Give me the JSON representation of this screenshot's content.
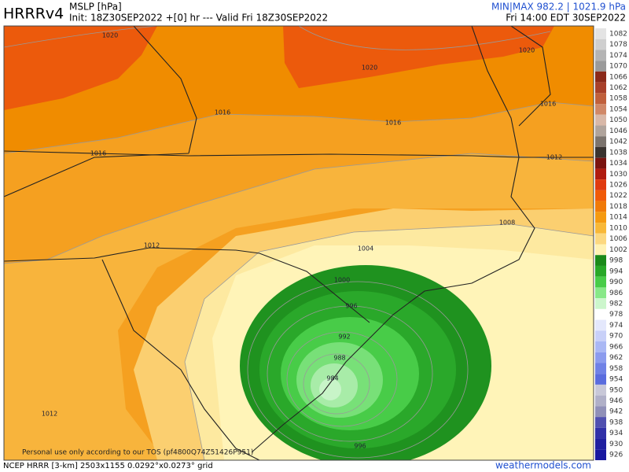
{
  "header": {
    "model": "HRRRv4",
    "field": "MSLP [hPa]",
    "init": "Init: 18Z30SEP2022 +[0] hr --- Valid Fri 18Z30SEP2022",
    "minmax": "MIN|MAX 982.2 | 1021.9 hPa",
    "valid_local": "Fri 14:00 EDT 30SEP2022"
  },
  "map": {
    "watermark": "Personal use only according to our TOS (pf4800Q74Z51426P951)",
    "contour_labels": [
      "1020",
      "1020",
      "1020",
      "1016",
      "1016",
      "1016",
      "1016",
      "1012",
      "1012",
      "1012",
      "1008",
      "1004",
      "1000",
      "996",
      "992",
      "988",
      "984",
      "996"
    ]
  },
  "colorbar": [
    {
      "label": 1082,
      "color": "#e4e4e4"
    },
    {
      "label": 1078,
      "color": "#cfcfcf"
    },
    {
      "label": 1074,
      "color": "#b4b4b4"
    },
    {
      "label": 1070,
      "color": "#9a9a9a"
    },
    {
      "label": 1066,
      "color": "#8b2a1a"
    },
    {
      "label": 1062,
      "color": "#a8402a"
    },
    {
      "label": 1058,
      "color": "#c0603c"
    },
    {
      "label": 1054,
      "color": "#d08868"
    },
    {
      "label": 1050,
      "color": "#d8b8a8"
    },
    {
      "label": 1046,
      "color": "#b0a49c"
    },
    {
      "label": 1042,
      "color": "#7c746e"
    },
    {
      "label": 1038,
      "color": "#3a3430"
    },
    {
      "label": 1034,
      "color": "#7a1410"
    },
    {
      "label": 1030,
      "color": "#b01c10"
    },
    {
      "label": 1026,
      "color": "#e03a10"
    },
    {
      "label": 1022,
      "color": "#f05a08"
    },
    {
      "label": 1018,
      "color": "#f07a08"
    },
    {
      "label": 1014,
      "color": "#f59a10"
    },
    {
      "label": 1010,
      "color": "#f8b838"
    },
    {
      "label": 1006,
      "color": "#fcd880"
    },
    {
      "label": 1002,
      "color": "#fff2b4"
    },
    {
      "label": 998,
      "color": "#1a8a1a"
    },
    {
      "label": 994,
      "color": "#28a828"
    },
    {
      "label": 990,
      "color": "#48cc48"
    },
    {
      "label": 986,
      "color": "#88e888"
    },
    {
      "label": 982,
      "color": "#ccf6cc"
    },
    {
      "label": 978,
      "color": "#ffffff"
    },
    {
      "label": 974,
      "color": "#e4e8fc"
    },
    {
      "label": 970,
      "color": "#c8d0f8"
    },
    {
      "label": 966,
      "color": "#aab8f4"
    },
    {
      "label": 962,
      "color": "#8c9cee"
    },
    {
      "label": 958,
      "color": "#7082e6"
    },
    {
      "label": 954,
      "color": "#5a6cde"
    },
    {
      "label": 950,
      "color": "#c8c8d8"
    },
    {
      "label": 946,
      "color": "#b0b0c8"
    },
    {
      "label": 942,
      "color": "#9090b8"
    },
    {
      "label": 938,
      "color": "#5050b0"
    },
    {
      "label": 934,
      "color": "#3030a8"
    },
    {
      "label": 930,
      "color": "#2020a0"
    },
    {
      "label": 926,
      "color": "#1818a0"
    }
  ],
  "footer": {
    "grid": "NCEP HRRR [3-km] 2503x1155 0.0292°x0.0273° grid",
    "site": "weathermodels.com"
  }
}
